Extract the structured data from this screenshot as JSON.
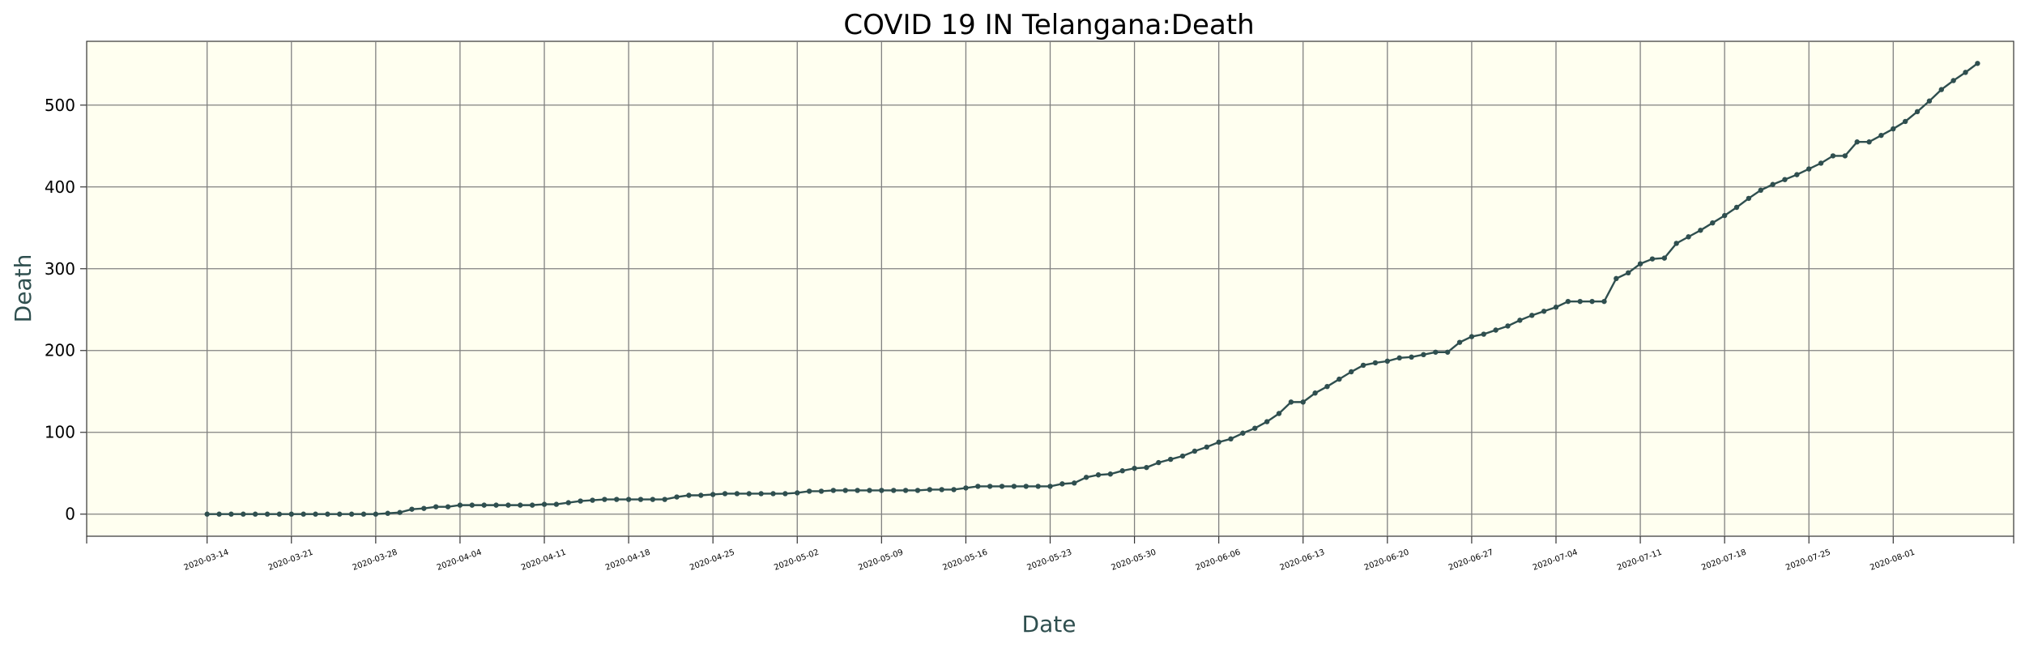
{
  "chart_data": {
    "type": "line",
    "title": "COVID 19 IN Telangana:Death",
    "xlabel": "Date",
    "ylabel": "Death",
    "x_start": "2020-03-14",
    "xlim": [
      "2020-03-04",
      "2020-08-11"
    ],
    "ylim": [
      -27,
      578
    ],
    "yticks": [
      0,
      100,
      200,
      300,
      400,
      500
    ],
    "xticks": [
      "2020-03-14",
      "2020-03-21",
      "2020-03-28",
      "2020-04-04",
      "2020-04-11",
      "2020-04-18",
      "2020-04-25",
      "2020-05-02",
      "2020-05-09",
      "2020-05-16",
      "2020-05-23",
      "2020-05-30",
      "2020-06-06",
      "2020-06-13",
      "2020-06-20",
      "2020-06-27",
      "2020-07-04",
      "2020-07-11",
      "2020-07-18",
      "2020-07-25",
      "2020-08-01"
    ],
    "grid": true,
    "colors": {
      "line": "#2f4f4f",
      "plot_background": "#fffff0",
      "grid": "#808080"
    },
    "series": [
      {
        "name": "",
        "values": [
          0,
          0,
          0,
          0,
          0,
          0,
          0,
          0,
          0,
          0,
          0,
          0,
          0,
          0,
          0,
          1,
          2,
          6,
          7,
          9,
          9,
          11,
          11,
          11,
          11,
          11,
          11,
          11,
          12,
          12,
          14,
          16,
          17,
          18,
          18,
          18,
          18,
          18,
          18,
          21,
          23,
          23,
          24,
          25,
          25,
          25,
          25,
          25,
          25,
          26,
          28,
          28,
          29,
          29,
          29,
          29,
          29,
          29,
          29,
          29,
          30,
          30,
          30,
          32,
          34,
          34,
          34,
          34,
          34,
          34,
          34,
          37,
          38,
          45,
          48,
          49,
          53,
          56,
          57,
          63,
          67,
          71,
          77,
          82,
          88,
          92,
          99,
          105,
          113,
          123,
          137,
          137,
          148,
          156,
          165,
          174,
          182,
          185,
          187,
          191,
          192,
          195,
          198,
          198,
          210,
          217,
          220,
          225,
          230,
          237,
          243,
          248,
          253,
          260,
          260,
          260,
          260,
          288,
          295,
          306,
          312,
          313,
          331,
          339,
          347,
          356,
          365,
          375,
          386,
          396,
          403,
          409,
          415,
          422,
          429,
          438,
          438,
          455,
          455,
          463,
          471,
          480,
          492,
          505,
          519,
          530,
          540,
          551
        ]
      }
    ]
  }
}
